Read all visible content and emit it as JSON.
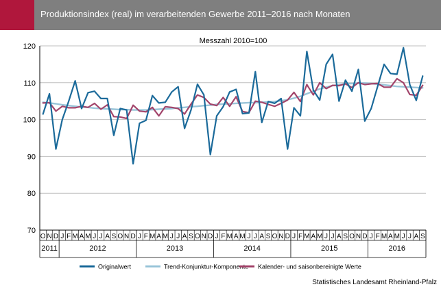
{
  "header": {
    "title": "Produktionsindex (real) im verarbeitenden Gewerbe 2011–2016 nach Monaten",
    "accent_color": "#b0173c",
    "background_color": "#7f7f7f"
  },
  "source": "Statistisches Landesamt Rheinland-Pfalz",
  "chart_data": {
    "type": "line",
    "subtitle": "Messzahl 2010=100",
    "ylim": [
      70,
      120
    ],
    "yticks": [
      70,
      80,
      90,
      100,
      110,
      120
    ],
    "grid": "horizontal",
    "legend_position": "bottom",
    "month_labels": [
      "O",
      "N",
      "D",
      "J",
      "F",
      "M",
      "A",
      "M",
      "J",
      "J",
      "A",
      "S",
      "O",
      "N",
      "D",
      "J",
      "F",
      "M",
      "A",
      "M",
      "J",
      "J",
      "A",
      "S",
      "O",
      "N",
      "D",
      "J",
      "F",
      "M",
      "A",
      "M",
      "J",
      "J",
      "A",
      "S",
      "O",
      "N",
      "D",
      "J",
      "F",
      "M",
      "A",
      "M",
      "J",
      "J",
      "A",
      "S",
      "O",
      "N",
      "D",
      "J",
      "F",
      "M",
      "A",
      "M",
      "J",
      "J",
      "A",
      "S"
    ],
    "years": [
      {
        "label": "2011",
        "start": 0,
        "count": 3
      },
      {
        "label": "2012",
        "start": 3,
        "count": 12
      },
      {
        "label": "2013",
        "start": 15,
        "count": 12
      },
      {
        "label": "2014",
        "start": 27,
        "count": 12
      },
      {
        "label": "2015",
        "start": 39,
        "count": 12
      },
      {
        "label": "2016",
        "start": 51,
        "count": 9
      }
    ],
    "series": [
      {
        "name": "Originalwert",
        "color": "#1b6a9a",
        "width": 2.2,
        "values": [
          101.5,
          107,
          92,
          100,
          105,
          110.5,
          103,
          107.3,
          107.7,
          105.7,
          105.7,
          95.7,
          103,
          102.6,
          88,
          99,
          99.8,
          106.5,
          104.5,
          104.7,
          107.5,
          108.9,
          97.6,
          102.6,
          109.6,
          106.7,
          90.5,
          101,
          103.5,
          107.5,
          108.2,
          101.6,
          101.8,
          113,
          99.2,
          104.9,
          104.4,
          105.7,
          92,
          103.2,
          101,
          118.5,
          108,
          105.3,
          115,
          117.7,
          105,
          110.7,
          107.7,
          113.6,
          99.6,
          103,
          109,
          115,
          112.5,
          112.3,
          119.5,
          109.5,
          105.2,
          111.8
        ]
      },
      {
        "name": "Trend-Konjunktur-Komponente",
        "color": "#9ac5d9",
        "width": 2.4,
        "values": [
          104.7,
          104.5,
          104.3,
          104,
          103.8,
          103.6,
          103.4,
          103.3,
          103.1,
          103,
          102.9,
          102.8,
          102.7,
          102.7,
          102.6,
          102.6,
          102.6,
          102.7,
          102.8,
          102.9,
          103,
          103.2,
          103.3,
          103.5,
          103.6,
          103.8,
          103.9,
          104.1,
          104.2,
          104.3,
          104.4,
          104.5,
          104.6,
          104.6,
          104.7,
          104.8,
          104.9,
          105.1,
          105.4,
          105.8,
          106.3,
          107,
          107.7,
          108.3,
          108.8,
          109.2,
          109.5,
          109.7,
          109.8,
          109.9,
          109.9,
          109.8,
          109.6,
          109.4,
          109.2,
          109,
          108.9,
          108.8,
          108.7,
          108.6
        ]
      },
      {
        "name": "Kalender- und saisonbereinigte Werte",
        "color": "#a3456b",
        "width": 2.2,
        "values": [
          104.5,
          104.6,
          102.3,
          103.6,
          103.2,
          103.2,
          103.6,
          103.3,
          104.4,
          102.8,
          104,
          100.8,
          100.7,
          100.3,
          103.9,
          102.3,
          102.1,
          103.3,
          101,
          103.5,
          103.3,
          103,
          101.5,
          104.2,
          106.7,
          106,
          104.2,
          103.8,
          106,
          103.6,
          106.2,
          102.2,
          101.9,
          105,
          104.7,
          104.1,
          103.6,
          104.4,
          105.3,
          107.4,
          104.9,
          109.5,
          106.7,
          110,
          108.4,
          109.3,
          109.2,
          109.7,
          108.7,
          110,
          109.5,
          109.7,
          109.8,
          108.8,
          108.8,
          111.1,
          110,
          106.8,
          106.6,
          109.3
        ]
      }
    ]
  }
}
